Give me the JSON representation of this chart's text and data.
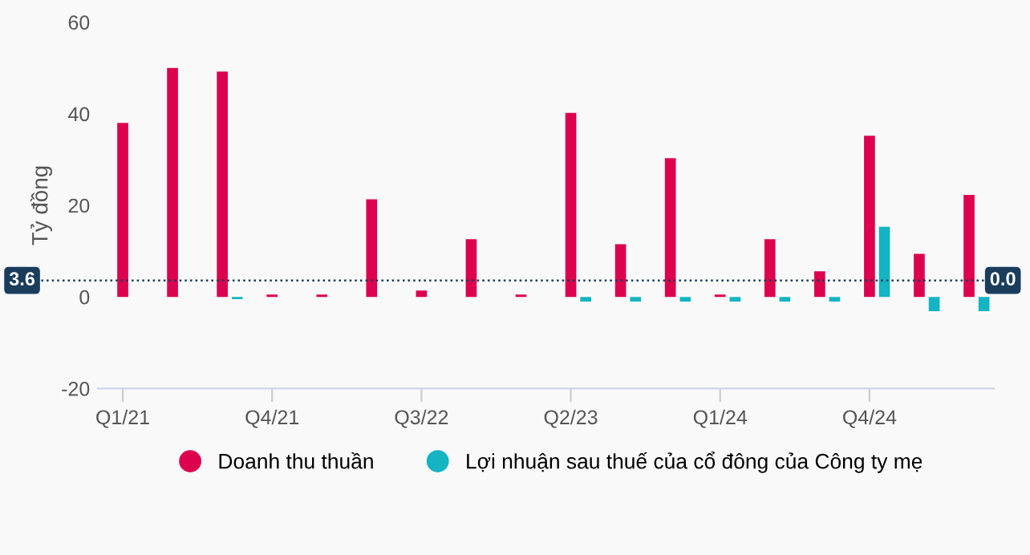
{
  "chart_data": {
    "type": "bar",
    "ylabel": "Tỷ đồng",
    "categories": [
      "Q1/21",
      null,
      null,
      "Q4/21",
      null,
      null,
      "Q3/22",
      null,
      null,
      "Q2/23",
      null,
      null,
      "Q1/24",
      null,
      null,
      "Q4/24",
      null,
      null
    ],
    "series": [
      {
        "name": "Doanh thu thuần",
        "color": "#dc004e",
        "values": [
          38,
          50,
          49.2,
          0.5,
          0.5,
          21.3,
          1.4,
          12.6,
          0.5,
          40.2,
          11.5,
          30.3,
          0.5,
          12.6,
          5.6,
          35.2,
          9.4,
          22.3
        ]
      },
      {
        "name": "Lợi nhuận sau thuế của cổ đông của Công ty mẹ",
        "color": "#14b4c3",
        "values": [
          null,
          null,
          -0.5,
          null,
          null,
          null,
          null,
          null,
          null,
          -1,
          -1,
          -1,
          -1,
          -1,
          -1,
          15.3,
          -3.1,
          -3.1
        ]
      }
    ],
    "ylim": [
      -20,
      60
    ],
    "yticks": [
      -20,
      0,
      20,
      40,
      60
    ],
    "grid": false,
    "legend": "bottom",
    "ref_lines": [
      {
        "axis": "y",
        "value": 3.6,
        "label": "3.6",
        "color": "#1a3d5c",
        "line_style": "dotted"
      }
    ],
    "annotations": [
      "0.0"
    ]
  }
}
